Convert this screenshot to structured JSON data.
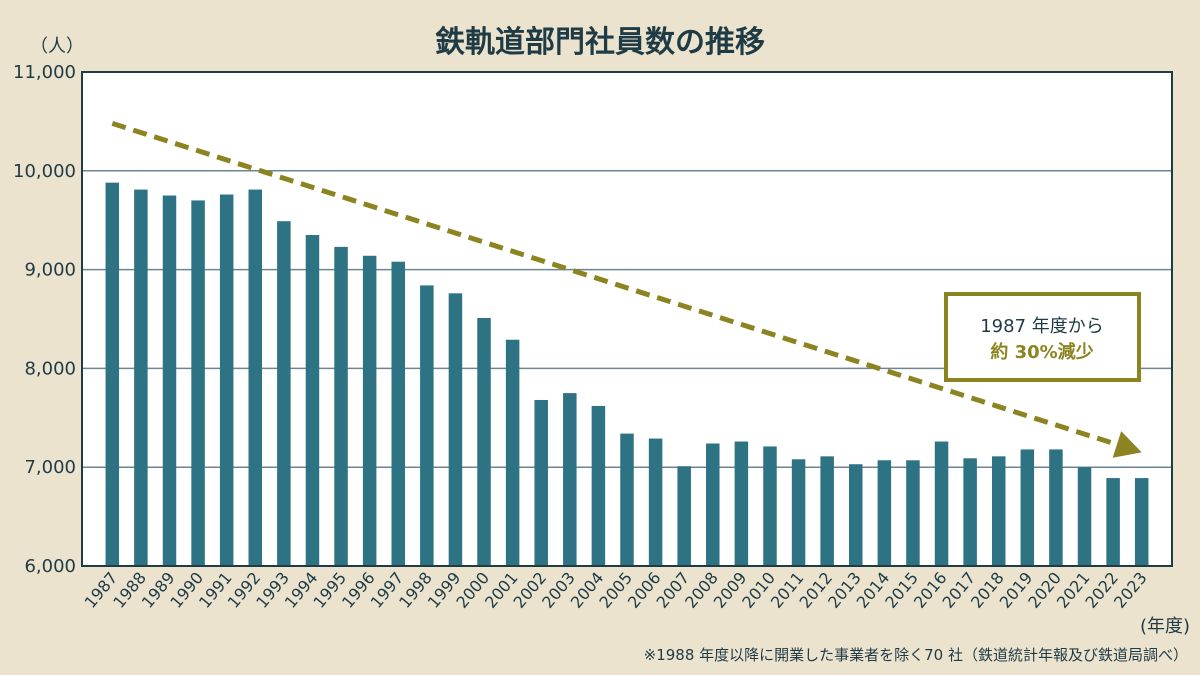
{
  "chart_data": {
    "type": "bar",
    "title": "鉄軌道部門社員数の推移",
    "ylabel": "（人）",
    "xlabel": "(年度)",
    "ylim": [
      6000,
      11000
    ],
    "yticks": [
      "6,000",
      "7,000",
      "8,000",
      "9,000",
      "10,000",
      "11,000"
    ],
    "categories": [
      "1987",
      "1988",
      "1989",
      "1990",
      "1991",
      "1992",
      "1993",
      "1994",
      "1995",
      "1996",
      "1997",
      "1998",
      "1999",
      "2000",
      "2001",
      "2002",
      "2003",
      "2004",
      "2005",
      "2006",
      "2007",
      "2008",
      "2009",
      "2010",
      "2011",
      "2012",
      "2013",
      "2014",
      "2015",
      "2016",
      "2017",
      "2018",
      "2019",
      "2020",
      "2021",
      "2022",
      "2023"
    ],
    "values": [
      9880,
      9810,
      9750,
      9700,
      9760,
      9810,
      9490,
      9350,
      9230,
      9140,
      9080,
      8840,
      8760,
      8510,
      8290,
      7680,
      7750,
      7620,
      7340,
      7290,
      7010,
      7240,
      7260,
      7210,
      7080,
      7110,
      7030,
      7070,
      7070,
      7260,
      7090,
      7110,
      7180,
      7180,
      7000,
      6890,
      6890
    ],
    "grid": true,
    "trend_line": {
      "from": [
        0,
        10480
      ],
      "to": [
        36,
        7150
      ],
      "style": "dashed-arrow"
    },
    "annotation": {
      "line1": "1987 年度から",
      "line2": "約 30%減少"
    },
    "footnote": "※1988 年度以降に開業した事業者を除く70 社（鉄道統計年報及び鉄道局調べ）"
  },
  "colors": {
    "background": "#ece3cf",
    "plot_bg": "#ffffff",
    "bar": "#2e7384",
    "grid": "#6d8591",
    "trend": "#8c8420",
    "axis": "#1f3b46"
  }
}
